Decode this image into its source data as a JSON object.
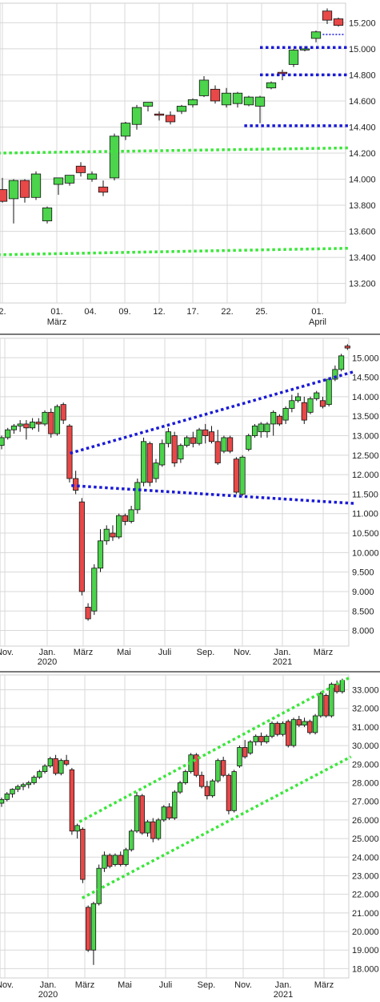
{
  "colors": {
    "up": "#4cd44c",
    "down": "#e84848",
    "blue_line": "#1a1ad6",
    "green_line": "#3ce63c",
    "grid": "#d8d8d8",
    "frame": "#cfcfcf"
  },
  "chart_data": [
    {
      "type": "candlestick",
      "ylim": [
        13050,
        15350
      ],
      "y_ticks": [
        "13.200",
        "13.400",
        "13.600",
        "13.800",
        "14.000",
        "14.200",
        "14.400",
        "14.600",
        "14.800",
        "15.000",
        "15.200"
      ],
      "x_ticks": [
        "2.",
        "01.",
        "04.",
        "09.",
        "12.",
        "17.",
        "22.",
        "25.",
        "01."
      ],
      "x_sub_labels": [
        "März",
        "April"
      ],
      "candles": [
        {
          "o": 13920,
          "h": 14010,
          "l": 13820,
          "c": 13830
        },
        {
          "o": 13850,
          "h": 14000,
          "l": 13660,
          "c": 13990
        },
        {
          "o": 13990,
          "h": 14000,
          "l": 13820,
          "c": 13860
        },
        {
          "o": 13860,
          "h": 14060,
          "l": 13840,
          "c": 14040
        },
        {
          "o": 13680,
          "h": 13790,
          "l": 13660,
          "c": 13780
        },
        {
          "o": 13960,
          "h": 14010,
          "l": 13880,
          "c": 14010
        },
        {
          "o": 13970,
          "h": 14030,
          "l": 13950,
          "c": 14030
        },
        {
          "o": 14100,
          "h": 14130,
          "l": 14020,
          "c": 14050
        },
        {
          "o": 14000,
          "h": 14060,
          "l": 13980,
          "c": 14040
        },
        {
          "o": 13940,
          "h": 13990,
          "l": 13870,
          "c": 13900
        },
        {
          "o": 14010,
          "h": 14350,
          "l": 13990,
          "c": 14330
        },
        {
          "o": 14330,
          "h": 14440,
          "l": 14300,
          "c": 14430
        },
        {
          "o": 14420,
          "h": 14570,
          "l": 14380,
          "c": 14550
        },
        {
          "o": 14560,
          "h": 14590,
          "l": 14520,
          "c": 14590
        },
        {
          "o": 14500,
          "h": 14520,
          "l": 14450,
          "c": 14490
        },
        {
          "o": 14490,
          "h": 14520,
          "l": 14420,
          "c": 14440
        },
        {
          "o": 14520,
          "h": 14570,
          "l": 14500,
          "c": 14560
        },
        {
          "o": 14570,
          "h": 14620,
          "l": 14550,
          "c": 14610
        },
        {
          "o": 14640,
          "h": 14790,
          "l": 14630,
          "c": 14760
        },
        {
          "o": 14690,
          "h": 14720,
          "l": 14580,
          "c": 14600
        },
        {
          "o": 14570,
          "h": 14700,
          "l": 14550,
          "c": 14660
        },
        {
          "o": 14580,
          "h": 14670,
          "l": 14550,
          "c": 14660
        },
        {
          "o": 14570,
          "h": 14640,
          "l": 14560,
          "c": 14630
        },
        {
          "o": 14560,
          "h": 14640,
          "l": 14430,
          "c": 14630
        },
        {
          "o": 14700,
          "h": 14750,
          "l": 14690,
          "c": 14740
        },
        {
          "o": 14820,
          "h": 14840,
          "l": 14760,
          "c": 14810
        },
        {
          "o": 14880,
          "h": 15000,
          "l": 14860,
          "c": 14990
        },
        {
          "o": 15000,
          "h": 15020,
          "l": 14980,
          "c": 15000
        },
        {
          "o": 15080,
          "h": 15140,
          "l": 15050,
          "c": 15130
        },
        {
          "o": 15290,
          "h": 15310,
          "l": 15190,
          "c": 15220
        },
        {
          "o": 15230,
          "h": 15240,
          "l": 15170,
          "c": 15180
        }
      ],
      "hlines": [
        {
          "y": 15010,
          "x0": 23,
          "x1": 31,
          "color": "blue"
        },
        {
          "y": 14800,
          "x0": 23,
          "x1": 31,
          "color": "blue"
        },
        {
          "y": 14410,
          "x0": 21.6,
          "x1": 31,
          "color": "blue"
        },
        {
          "y": 15110,
          "x0": 28.6,
          "x1": 30.6,
          "color": "blue",
          "thin": true
        }
      ],
      "trendlines": [
        {
          "x0": -0.4,
          "y0": 14200,
          "x1": 31,
          "y1": 14240,
          "color": "green"
        },
        {
          "x0": -0.4,
          "y0": 13420,
          "x1": 31,
          "y1": 13470,
          "color": "green"
        }
      ]
    },
    {
      "type": "candlestick",
      "ylim": [
        7600,
        15500
      ],
      "y_ticks": [
        "8.000",
        "8.500",
        "9.000",
        "9.500",
        "10.000",
        "10.500",
        "11.000",
        "11.500",
        "12.000",
        "12.500",
        "13.000",
        "13.500",
        "14.000",
        "14.500",
        "15.000"
      ],
      "x_ticks": [
        "Nov.",
        "Jan.",
        "März",
        "Mai",
        "Juli",
        "Sep.",
        "Nov.",
        "Jan.",
        "März"
      ],
      "x_sub_labels": [
        "2020",
        "2021"
      ],
      "candles": [
        {
          "o": 12750,
          "h": 13000,
          "l": 12650,
          "c": 12950
        },
        {
          "o": 12950,
          "h": 13200,
          "l": 12900,
          "c": 13150
        },
        {
          "o": 13150,
          "h": 13300,
          "l": 13050,
          "c": 13250
        },
        {
          "o": 13250,
          "h": 13400,
          "l": 13100,
          "c": 13300
        },
        {
          "o": 13300,
          "h": 13400,
          "l": 12900,
          "c": 13200
        },
        {
          "o": 13200,
          "h": 13450,
          "l": 13150,
          "c": 13350
        },
        {
          "o": 13350,
          "h": 13450,
          "l": 13100,
          "c": 13300
        },
        {
          "o": 13300,
          "h": 13650,
          "l": 13250,
          "c": 13600
        },
        {
          "o": 13600,
          "h": 13700,
          "l": 12950,
          "c": 13050
        },
        {
          "o": 13050,
          "h": 13800,
          "l": 13000,
          "c": 13750
        },
        {
          "o": 13800,
          "h": 13850,
          "l": 13300,
          "c": 13400
        },
        {
          "o": 13250,
          "h": 13300,
          "l": 11800,
          "c": 11900
        },
        {
          "o": 11900,
          "h": 12100,
          "l": 11500,
          "c": 11600
        },
        {
          "o": 11300,
          "h": 11400,
          "l": 8900,
          "c": 9000
        },
        {
          "o": 8600,
          "h": 8700,
          "l": 8250,
          "c": 8300
        },
        {
          "o": 8500,
          "h": 9700,
          "l": 8400,
          "c": 9600
        },
        {
          "o": 9600,
          "h": 10600,
          "l": 9500,
          "c": 10300
        },
        {
          "o": 10300,
          "h": 10700,
          "l": 10200,
          "c": 10600
        },
        {
          "o": 10500,
          "h": 10700,
          "l": 10300,
          "c": 10400
        },
        {
          "o": 10400,
          "h": 11000,
          "l": 10350,
          "c": 10950
        },
        {
          "o": 10950,
          "h": 11000,
          "l": 10700,
          "c": 10800
        },
        {
          "o": 10800,
          "h": 11200,
          "l": 10750,
          "c": 11100
        },
        {
          "o": 11100,
          "h": 11900,
          "l": 11000,
          "c": 11800
        },
        {
          "o": 11800,
          "h": 12950,
          "l": 11700,
          "c": 12850
        },
        {
          "o": 12800,
          "h": 12850,
          "l": 11700,
          "c": 11800
        },
        {
          "o": 11900,
          "h": 12400,
          "l": 11800,
          "c": 12300
        },
        {
          "o": 12250,
          "h": 12900,
          "l": 12200,
          "c": 12800
        },
        {
          "o": 12800,
          "h": 13200,
          "l": 12700,
          "c": 13100
        },
        {
          "o": 13000,
          "h": 13100,
          "l": 12200,
          "c": 12300
        },
        {
          "o": 12400,
          "h": 12800,
          "l": 12300,
          "c": 12750
        },
        {
          "o": 12750,
          "h": 13000,
          "l": 12700,
          "c": 12950
        },
        {
          "o": 12950,
          "h": 13100,
          "l": 12700,
          "c": 12800
        },
        {
          "o": 12800,
          "h": 13200,
          "l": 12750,
          "c": 13150
        },
        {
          "o": 13150,
          "h": 13300,
          "l": 12800,
          "c": 13000
        },
        {
          "o": 13100,
          "h": 13250,
          "l": 12800,
          "c": 12850
        },
        {
          "o": 12850,
          "h": 13150,
          "l": 12250,
          "c": 12300
        },
        {
          "o": 12600,
          "h": 13000,
          "l": 12550,
          "c": 12950
        },
        {
          "o": 12950,
          "h": 13000,
          "l": 12550,
          "c": 12600
        },
        {
          "o": 12400,
          "h": 12450,
          "l": 11500,
          "c": 11550
        },
        {
          "o": 11500,
          "h": 12500,
          "l": 11450,
          "c": 12450
        },
        {
          "o": 12650,
          "h": 13050,
          "l": 12600,
          "c": 13000
        },
        {
          "o": 13000,
          "h": 13300,
          "l": 12950,
          "c": 13250
        },
        {
          "o": 13100,
          "h": 13350,
          "l": 12950,
          "c": 13300
        },
        {
          "o": 13100,
          "h": 13350,
          "l": 12950,
          "c": 13300
        },
        {
          "o": 13300,
          "h": 13650,
          "l": 13000,
          "c": 13600
        },
        {
          "o": 13500,
          "h": 13550,
          "l": 13250,
          "c": 13300
        },
        {
          "o": 13400,
          "h": 13750,
          "l": 13300,
          "c": 13700
        },
        {
          "o": 13700,
          "h": 14050,
          "l": 13600,
          "c": 13900
        },
        {
          "o": 13900,
          "h": 14100,
          "l": 13850,
          "c": 14000
        },
        {
          "o": 13850,
          "h": 14000,
          "l": 13300,
          "c": 13400
        },
        {
          "o": 13600,
          "h": 14000,
          "l": 13550,
          "c": 13950
        },
        {
          "o": 13950,
          "h": 14150,
          "l": 13900,
          "c": 14100
        },
        {
          "o": 13900,
          "h": 14000,
          "l": 13700,
          "c": 13750
        },
        {
          "o": 13800,
          "h": 14500,
          "l": 13750,
          "c": 14450
        },
        {
          "o": 14450,
          "h": 14800,
          "l": 14400,
          "c": 14700
        },
        {
          "o": 14700,
          "h": 15100,
          "l": 14650,
          "c": 15050
        },
        {
          "o": 15300,
          "h": 15350,
          "l": 15200,
          "c": 15250
        }
      ],
      "trendlines": [
        {
          "x0": 11.1,
          "y0": 12550,
          "x1": 57.2,
          "y1": 14650,
          "color": "blue"
        },
        {
          "x0": 11.3,
          "y0": 11720,
          "x1": 57.2,
          "y1": 11260,
          "color": "blue"
        }
      ]
    },
    {
      "type": "candlestick",
      "ylim": [
        17500,
        33800
      ],
      "y_ticks": [
        "18.000",
        "19.000",
        "20.000",
        "21.000",
        "22.000",
        "23.000",
        "24.000",
        "25.000",
        "26.000",
        "27.000",
        "28.000",
        "29.000",
        "30.000",
        "31.000",
        "32.000",
        "33.000"
      ],
      "x_ticks": [
        "Nov.",
        "Jan.",
        "März",
        "Mai",
        "Juli",
        "Sep.",
        "Nov.",
        "Jan.",
        "März"
      ],
      "x_sub_labels": [
        "2020",
        "2021"
      ],
      "candles": [
        {
          "o": 26900,
          "h": 27200,
          "l": 26700,
          "c": 27100
        },
        {
          "o": 27100,
          "h": 27500,
          "l": 27000,
          "c": 27400
        },
        {
          "o": 27400,
          "h": 27700,
          "l": 27200,
          "c": 27650
        },
        {
          "o": 27650,
          "h": 27900,
          "l": 27500,
          "c": 27800
        },
        {
          "o": 27800,
          "h": 28000,
          "l": 27600,
          "c": 27900
        },
        {
          "o": 27900,
          "h": 28100,
          "l": 27700,
          "c": 28000
        },
        {
          "o": 28000,
          "h": 28400,
          "l": 27900,
          "c": 28300
        },
        {
          "o": 28300,
          "h": 28700,
          "l": 28200,
          "c": 28600
        },
        {
          "o": 28600,
          "h": 29000,
          "l": 28500,
          "c": 28900
        },
        {
          "o": 28900,
          "h": 29400,
          "l": 28800,
          "c": 29300
        },
        {
          "o": 29300,
          "h": 29500,
          "l": 28400,
          "c": 28500
        },
        {
          "o": 28500,
          "h": 29300,
          "l": 28400,
          "c": 29200
        },
        {
          "o": 29200,
          "h": 29500,
          "l": 28900,
          "c": 29000
        },
        {
          "o": 28700,
          "h": 28800,
          "l": 25200,
          "c": 25400
        },
        {
          "o": 25400,
          "h": 25800,
          "l": 25000,
          "c": 25700
        },
        {
          "o": 25500,
          "h": 25600,
          "l": 22600,
          "c": 22800
        },
        {
          "o": 21300,
          "h": 21400,
          "l": 18900,
          "c": 19000
        },
        {
          "o": 19000,
          "h": 21600,
          "l": 18200,
          "c": 21500
        },
        {
          "o": 21500,
          "h": 23600,
          "l": 21400,
          "c": 23400
        },
        {
          "o": 23400,
          "h": 24300,
          "l": 23200,
          "c": 24100
        },
        {
          "o": 24100,
          "h": 24200,
          "l": 23400,
          "c": 23500
        },
        {
          "o": 23600,
          "h": 24200,
          "l": 23500,
          "c": 24100
        },
        {
          "o": 24100,
          "h": 24300,
          "l": 23500,
          "c": 23600
        },
        {
          "o": 23600,
          "h": 24500,
          "l": 23500,
          "c": 24400
        },
        {
          "o": 24400,
          "h": 25500,
          "l": 24300,
          "c": 25400
        },
        {
          "o": 25400,
          "h": 27500,
          "l": 25300,
          "c": 27300
        },
        {
          "o": 27300,
          "h": 27400,
          "l": 25200,
          "c": 25300
        },
        {
          "o": 25300,
          "h": 26000,
          "l": 25100,
          "c": 25900
        },
        {
          "o": 25900,
          "h": 26100,
          "l": 24800,
          "c": 25000
        },
        {
          "o": 25000,
          "h": 26100,
          "l": 24900,
          "c": 26000
        },
        {
          "o": 26000,
          "h": 26800,
          "l": 25900,
          "c": 26700
        },
        {
          "o": 26700,
          "h": 26900,
          "l": 26000,
          "c": 26100
        },
        {
          "o": 26100,
          "h": 27600,
          "l": 26000,
          "c": 27500
        },
        {
          "o": 27500,
          "h": 28100,
          "l": 27400,
          "c": 28000
        },
        {
          "o": 28000,
          "h": 28700,
          "l": 27900,
          "c": 28600
        },
        {
          "o": 28600,
          "h": 29600,
          "l": 28500,
          "c": 29500
        },
        {
          "o": 29500,
          "h": 29600,
          "l": 28300,
          "c": 28400
        },
        {
          "o": 28400,
          "h": 28600,
          "l": 27700,
          "c": 27800
        },
        {
          "o": 27800,
          "h": 28100,
          "l": 27100,
          "c": 27300
        },
        {
          "o": 27300,
          "h": 28200,
          "l": 27200,
          "c": 28100
        },
        {
          "o": 28100,
          "h": 29300,
          "l": 28000,
          "c": 29200
        },
        {
          "o": 29200,
          "h": 29400,
          "l": 28300,
          "c": 28400
        },
        {
          "o": 28400,
          "h": 28500,
          "l": 26300,
          "c": 26500
        },
        {
          "o": 26500,
          "h": 28700,
          "l": 26400,
          "c": 28600
        },
        {
          "o": 28900,
          "h": 30000,
          "l": 28800,
          "c": 29900
        },
        {
          "o": 29900,
          "h": 30300,
          "l": 29300,
          "c": 29400
        },
        {
          "o": 29600,
          "h": 30300,
          "l": 29500,
          "c": 30200
        },
        {
          "o": 30200,
          "h": 30600,
          "l": 30000,
          "c": 30500
        },
        {
          "o": 30500,
          "h": 30700,
          "l": 30000,
          "c": 30200
        },
        {
          "o": 30200,
          "h": 30600,
          "l": 30100,
          "c": 30500
        },
        {
          "o": 30500,
          "h": 31300,
          "l": 30400,
          "c": 31200
        },
        {
          "o": 31200,
          "h": 31300,
          "l": 30500,
          "c": 30600
        },
        {
          "o": 30600,
          "h": 31300,
          "l": 30500,
          "c": 31200
        },
        {
          "o": 31300,
          "h": 31400,
          "l": 29900,
          "c": 30000
        },
        {
          "o": 30000,
          "h": 31500,
          "l": 29900,
          "c": 31400
        },
        {
          "o": 31400,
          "h": 31600,
          "l": 31000,
          "c": 31100
        },
        {
          "o": 31100,
          "h": 31500,
          "l": 31000,
          "c": 31300
        },
        {
          "o": 31300,
          "h": 31400,
          "l": 30600,
          "c": 30700
        },
        {
          "o": 30700,
          "h": 31700,
          "l": 30600,
          "c": 31600
        },
        {
          "o": 31600,
          "h": 32900,
          "l": 31500,
          "c": 32800
        },
        {
          "o": 32700,
          "h": 32800,
          "l": 31500,
          "c": 31600
        },
        {
          "o": 31600,
          "h": 33400,
          "l": 31500,
          "c": 33300
        },
        {
          "o": 33300,
          "h": 33500,
          "l": 32800,
          "c": 32900
        },
        {
          "o": 32900,
          "h": 33600,
          "l": 32800,
          "c": 33500
        }
      ],
      "trendlines": [
        {
          "x0": 14.4,
          "y0": 25900,
          "x1": 64.6,
          "y1": 33700,
          "color": "green"
        },
        {
          "x0": 14.9,
          "y0": 21800,
          "x1": 64.6,
          "y1": 29400,
          "color": "green"
        }
      ]
    }
  ]
}
